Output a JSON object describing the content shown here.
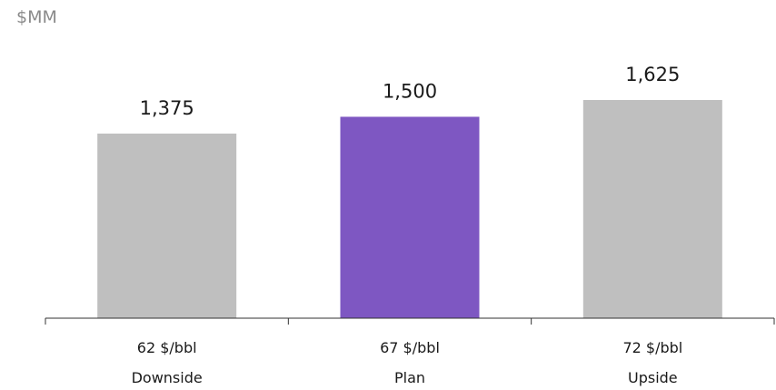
{
  "unit_label": "$MM",
  "colors": {
    "base": "#bfbfbf",
    "highlight": "#7e57c2",
    "axis": "#333333"
  },
  "chart_data": {
    "type": "bar",
    "categories": [
      "Downside",
      "Plan",
      "Upside"
    ],
    "scenario_prices": [
      "62 $/bbl",
      "67 $/bbl",
      "72 $/bbl"
    ],
    "values": [
      1375,
      1500,
      1625
    ],
    "value_labels": [
      "1,375",
      "1,500",
      "1,625"
    ],
    "highlight_index": 1,
    "ylabel": "$MM",
    "ylim": [
      0,
      1625
    ],
    "grid": false,
    "legend": "none"
  }
}
